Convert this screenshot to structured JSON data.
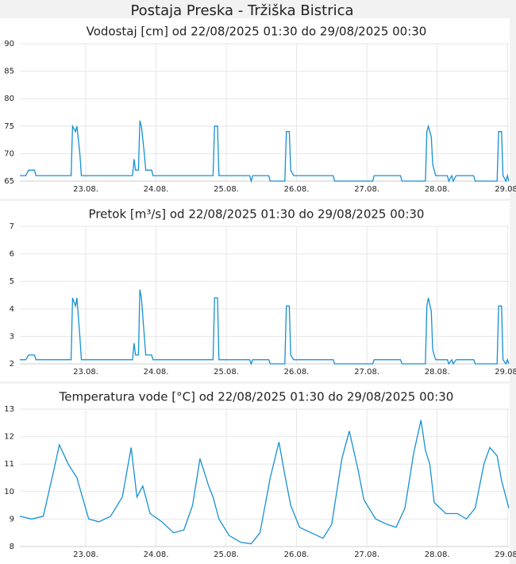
{
  "title": "Postaja Preska - Tržiška Bistrica",
  "chart_data": [
    {
      "type": "line",
      "title": "Vodostaj [cm] od 22/08/2025 01:30 do 29/08/2025 00:30",
      "color": "#1590d4",
      "grid": true,
      "x": [
        "2025-08-22 01:30",
        "2025-08-22 03:30",
        "2025-08-22 04:30",
        "2025-08-22 06:30",
        "2025-08-22 07:00",
        "2025-08-22 19:00",
        "2025-08-22 19:30",
        "2025-08-22 20:30",
        "2025-08-22 21:00",
        "2025-08-22 22:00",
        "2025-08-22 22:30",
        "2025-08-23 16:00",
        "2025-08-23 16:30",
        "2025-08-23 17:00",
        "2025-08-23 18:00",
        "2025-08-23 18:30",
        "2025-08-23 19:00",
        "2025-08-23 20:00",
        "2025-08-23 20:30",
        "2025-08-23 22:30",
        "2025-08-23 23:00",
        "2025-08-24 19:30",
        "2025-08-24 20:00",
        "2025-08-24 21:00",
        "2025-08-24 21:30",
        "2025-08-25 08:00",
        "2025-08-25 08:30",
        "2025-08-25 09:00",
        "2025-08-25 14:30",
        "2025-08-25 15:00",
        "2025-08-25 20:00",
        "2025-08-25 20:30",
        "2025-08-25 21:30",
        "2025-08-25 22:00",
        "2025-08-25 23:00",
        "2025-08-26 12:30",
        "2025-08-26 13:00",
        "2025-08-27 02:00",
        "2025-08-27 02:30",
        "2025-08-27 11:30",
        "2025-08-27 12:00",
        "2025-08-27 20:00",
        "2025-08-27 20:30",
        "2025-08-27 21:00",
        "2025-08-27 22:00",
        "2025-08-27 22:30",
        "2025-08-27 23:30",
        "2025-08-28 03:30",
        "2025-08-28 04:00",
        "2025-08-28 05:00",
        "2025-08-28 05:30",
        "2025-08-28 06:30",
        "2025-08-28 12:30",
        "2025-08-28 13:00",
        "2025-08-28 20:30",
        "2025-08-28 21:00",
        "2025-08-28 22:00",
        "2025-08-28 22:30",
        "2025-08-28 23:30",
        "2025-08-29 00:00",
        "2025-08-29 00:30"
      ],
      "values": [
        66,
        66,
        67,
        67,
        66,
        66,
        75,
        74,
        75,
        70,
        66,
        66,
        69,
        67,
        67,
        76,
        75,
        70,
        67,
        67,
        66,
        66,
        75,
        75,
        66,
        66,
        65,
        66,
        66,
        65,
        65,
        74,
        74,
        67,
        66,
        66,
        65,
        65,
        66,
        66,
        65,
        65,
        74,
        75,
        73,
        68,
        66,
        66,
        65,
        66,
        65,
        66,
        66,
        65,
        65,
        74,
        74,
        66,
        65,
        66,
        65
      ],
      "xlim": [
        "2025-08-22 01:30",
        "2025-08-29 00:30"
      ],
      "xticks": [
        {
          "value": "2025-08-23 00:00",
          "label": "23.08."
        },
        {
          "value": "2025-08-24 00:00",
          "label": "24.08."
        },
        {
          "value": "2025-08-25 00:00",
          "label": "25.08."
        },
        {
          "value": "2025-08-26 00:00",
          "label": "26.08."
        },
        {
          "value": "2025-08-27 00:00",
          "label": "27.08."
        },
        {
          "value": "2025-08-28 00:00",
          "label": "28.08."
        },
        {
          "value": "2025-08-29 00:00",
          "label": "29.08."
        }
      ],
      "ylim": [
        65,
        90
      ],
      "yticks": [
        65,
        70,
        75,
        80,
        85,
        90
      ]
    },
    {
      "type": "line",
      "title": "Pretok [m³/s] od 22/08/2025 01:30 do 29/08/2025 00:30",
      "color": "#1590d4",
      "grid": true,
      "x": [
        "2025-08-22 01:30",
        "2025-08-22 03:30",
        "2025-08-22 04:30",
        "2025-08-22 06:30",
        "2025-08-22 07:00",
        "2025-08-22 19:00",
        "2025-08-22 19:30",
        "2025-08-22 20:30",
        "2025-08-22 21:00",
        "2025-08-22 22:00",
        "2025-08-22 22:30",
        "2025-08-23 16:00",
        "2025-08-23 16:30",
        "2025-08-23 17:00",
        "2025-08-23 18:00",
        "2025-08-23 18:30",
        "2025-08-23 19:00",
        "2025-08-23 20:00",
        "2025-08-23 20:30",
        "2025-08-23 22:30",
        "2025-08-23 23:00",
        "2025-08-24 19:30",
        "2025-08-24 20:00",
        "2025-08-24 21:00",
        "2025-08-24 21:30",
        "2025-08-25 08:00",
        "2025-08-25 08:30",
        "2025-08-25 09:00",
        "2025-08-25 14:30",
        "2025-08-25 15:00",
        "2025-08-25 20:00",
        "2025-08-25 20:30",
        "2025-08-25 21:30",
        "2025-08-25 22:00",
        "2025-08-25 23:00",
        "2025-08-26 12:30",
        "2025-08-26 13:00",
        "2025-08-27 02:00",
        "2025-08-27 02:30",
        "2025-08-27 11:30",
        "2025-08-27 12:00",
        "2025-08-27 20:00",
        "2025-08-27 20:30",
        "2025-08-27 21:00",
        "2025-08-27 22:00",
        "2025-08-27 22:30",
        "2025-08-27 23:30",
        "2025-08-28 03:30",
        "2025-08-28 04:00",
        "2025-08-28 05:00",
        "2025-08-28 05:30",
        "2025-08-28 06:30",
        "2025-08-28 12:30",
        "2025-08-28 13:00",
        "2025-08-28 20:30",
        "2025-08-28 21:00",
        "2025-08-28 22:00",
        "2025-08-28 22:30",
        "2025-08-28 23:30",
        "2025-08-29 00:00",
        "2025-08-29 00:30"
      ],
      "values": [
        2.15,
        2.15,
        2.32,
        2.32,
        2.15,
        2.15,
        4.4,
        4.1,
        4.4,
        3.0,
        2.15,
        2.15,
        2.75,
        2.32,
        2.32,
        4.7,
        4.4,
        3.0,
        2.32,
        2.32,
        2.15,
        2.15,
        4.4,
        4.4,
        2.15,
        2.15,
        2.0,
        2.15,
        2.15,
        2.0,
        2.0,
        4.1,
        4.1,
        2.32,
        2.15,
        2.15,
        2.0,
        2.0,
        2.15,
        2.15,
        2.0,
        2.0,
        4.1,
        4.4,
        3.9,
        2.5,
        2.15,
        2.15,
        2.0,
        2.15,
        2.0,
        2.15,
        2.15,
        2.0,
        2.0,
        4.1,
        4.1,
        2.15,
        2.0,
        2.15,
        2.0
      ],
      "xlim": [
        "2025-08-22 01:30",
        "2025-08-29 00:30"
      ],
      "xticks": [
        {
          "value": "2025-08-23 00:00",
          "label": "23.08."
        },
        {
          "value": "2025-08-24 00:00",
          "label": "24.08."
        },
        {
          "value": "2025-08-25 00:00",
          "label": "25.08."
        },
        {
          "value": "2025-08-26 00:00",
          "label": "26.08."
        },
        {
          "value": "2025-08-27 00:00",
          "label": "27.08."
        },
        {
          "value": "2025-08-28 00:00",
          "label": "28.08."
        },
        {
          "value": "2025-08-29 00:00",
          "label": "29.08."
        }
      ],
      "ylim": [
        2,
        7
      ],
      "yticks": [
        2,
        3,
        4,
        5,
        6,
        7
      ]
    },
    {
      "type": "line",
      "title": "Temperatura vode [°C] od 22/08/2025 01:30 do 29/08/2025 00:30",
      "color": "#1590d4",
      "grid": true,
      "x": [
        "2025-08-22 01:30",
        "2025-08-22 05:30",
        "2025-08-22 09:30",
        "2025-08-22 12:30",
        "2025-08-22 15:00",
        "2025-08-22 18:00",
        "2025-08-22 21:00",
        "2025-08-23 01:00",
        "2025-08-23 04:30",
        "2025-08-23 08:30",
        "2025-08-23 12:30",
        "2025-08-23 15:30",
        "2025-08-23 17:30",
        "2025-08-23 19:30",
        "2025-08-23 22:00",
        "2025-08-24 02:00",
        "2025-08-24 06:00",
        "2025-08-24 09:30",
        "2025-08-24 12:30",
        "2025-08-24 15:00",
        "2025-08-24 18:00",
        "2025-08-24 19:30",
        "2025-08-24 21:30",
        "2025-08-25 01:00",
        "2025-08-25 05:00",
        "2025-08-25 08:30",
        "2025-08-25 11:30",
        "2025-08-25 15:00",
        "2025-08-25 18:00",
        "2025-08-25 20:00",
        "2025-08-25 22:00",
        "2025-08-26 01:00",
        "2025-08-26 05:00",
        "2025-08-26 09:00",
        "2025-08-26 12:00",
        "2025-08-26 15:30",
        "2025-08-26 18:00",
        "2025-08-26 21:00",
        "2025-08-26 23:00",
        "2025-08-27 03:00",
        "2025-08-27 07:00",
        "2025-08-27 10:00",
        "2025-08-27 13:00",
        "2025-08-27 16:00",
        "2025-08-27 18:30",
        "2025-08-27 20:00",
        "2025-08-27 21:30",
        "2025-08-27 23:00",
        "2025-08-28 03:00",
        "2025-08-28 07:00",
        "2025-08-28 10:00",
        "2025-08-28 13:00",
        "2025-08-28 16:00",
        "2025-08-28 18:00",
        "2025-08-28 20:30",
        "2025-08-28 22:00",
        "2025-08-29 00:30"
      ],
      "values": [
        9.1,
        9.0,
        9.1,
        10.5,
        11.7,
        11.0,
        10.5,
        9.0,
        8.9,
        9.1,
        9.8,
        11.6,
        9.8,
        10.2,
        9.2,
        8.9,
        8.5,
        8.6,
        9.5,
        11.2,
        10.2,
        9.8,
        9.0,
        8.4,
        8.15,
        8.1,
        8.5,
        10.5,
        11.8,
        10.6,
        9.5,
        8.7,
        8.5,
        8.3,
        8.8,
        11.2,
        12.2,
        10.8,
        9.7,
        9.0,
        8.8,
        8.7,
        9.4,
        11.4,
        12.6,
        11.5,
        11.0,
        9.6,
        9.2,
        9.2,
        9.0,
        9.4,
        11.0,
        11.6,
        11.3,
        10.4,
        9.4
      ],
      "xlim": [
        "2025-08-22 01:30",
        "2025-08-29 00:30"
      ],
      "xticks": [
        {
          "value": "2025-08-23 00:00",
          "label": "23.08."
        },
        {
          "value": "2025-08-24 00:00",
          "label": "24.08."
        },
        {
          "value": "2025-08-25 00:00",
          "label": "25.08."
        },
        {
          "value": "2025-08-26 00:00",
          "label": "26.08."
        },
        {
          "value": "2025-08-27 00:00",
          "label": "27.08."
        },
        {
          "value": "2025-08-28 00:00",
          "label": "28.08."
        },
        {
          "value": "2025-08-29 00:00",
          "label": "29.08."
        }
      ],
      "ylim": [
        8,
        13
      ],
      "yticks": [
        8,
        9,
        10,
        11,
        12,
        13
      ]
    }
  ]
}
